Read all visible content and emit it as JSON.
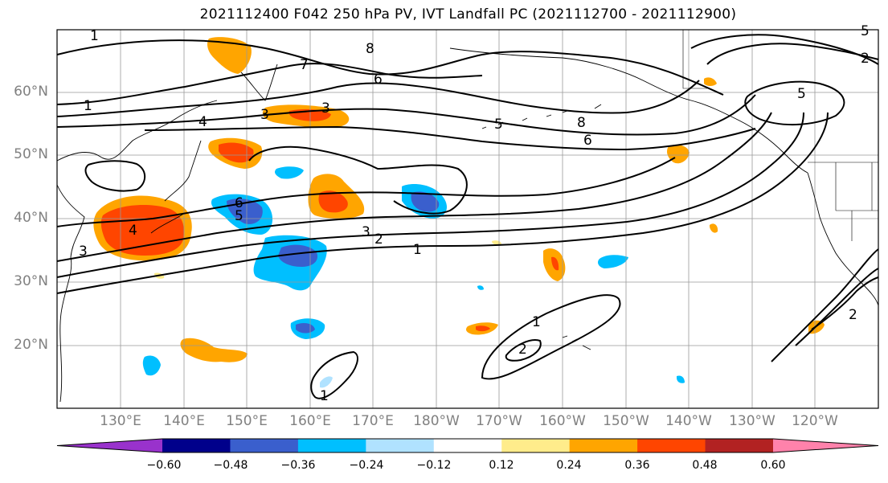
{
  "title": "2021112400 F042 250 hPa PV, IVT Landfall PC (2021112700 - 2021112900)",
  "lat_labels": [
    "60°N",
    "50°N",
    "40°N",
    "30°N",
    "20°N"
  ],
  "lon_labels": [
    "130°E",
    "140°E",
    "150°E",
    "160°E",
    "170°E",
    "180°W",
    "170°W",
    "160°W",
    "150°W",
    "140°W",
    "130°W",
    "120°W"
  ],
  "colorbar": {
    "ticks": [
      "−0.60",
      "−0.48",
      "−0.36",
      "−0.24",
      "−0.12",
      "0.12",
      "0.24",
      "0.36",
      "0.48",
      "0.60"
    ],
    "colors": [
      "#9932cc",
      "#00008b",
      "#3a5fcd",
      "#00bfff",
      "#b0e2ff",
      "#ffffff",
      "#ffec8b",
      "#ffa500",
      "#ff4500",
      "#b22222",
      "#ff82ab"
    ]
  },
  "contour_labels": [
    "1",
    "8",
    "7",
    "6",
    "1",
    "4",
    "3",
    "3",
    "5",
    "8",
    "6",
    "5",
    "2",
    "5",
    "6",
    "5",
    "4",
    "3",
    "3",
    "2",
    "1",
    "1",
    "2",
    "1",
    "2"
  ]
}
